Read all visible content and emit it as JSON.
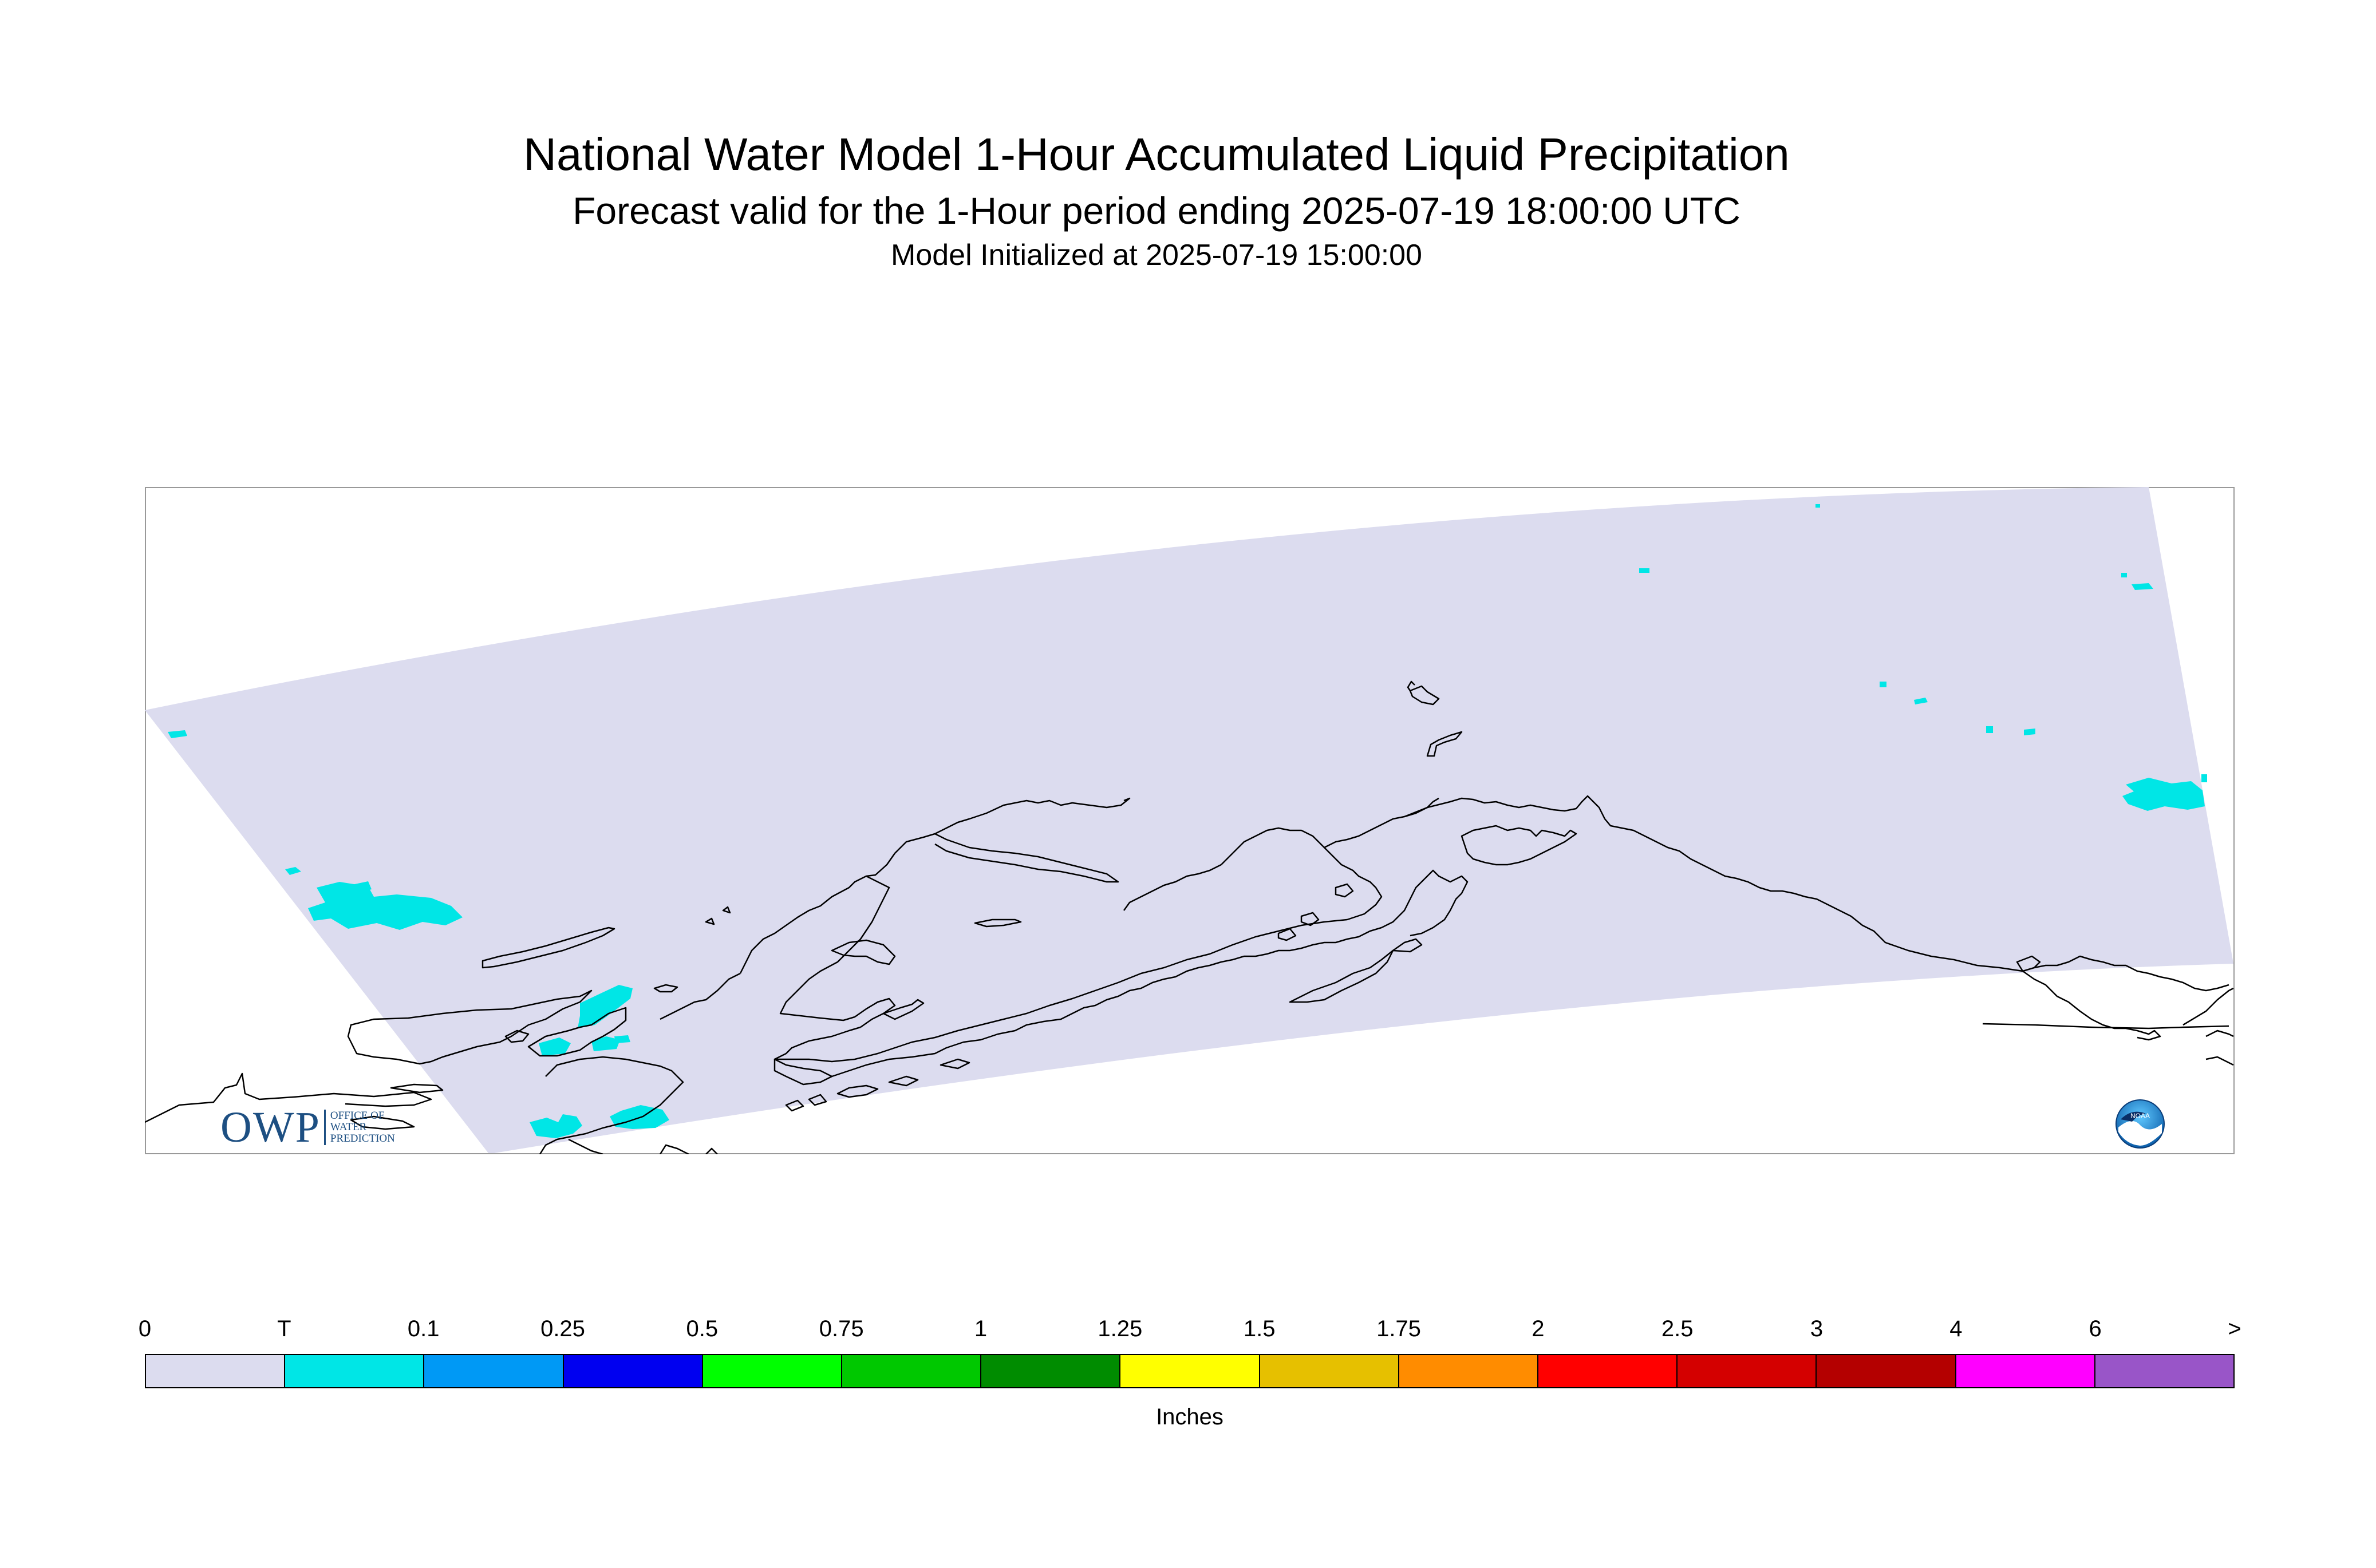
{
  "header": {
    "title": "National Water Model 1-Hour Accumulated Liquid Precipitation",
    "subtitle": "Forecast valid for the 1-Hour period ending 2025-07-19 18:00:00 UTC",
    "init_line": "Model Initialized at 2025-07-19 15:00:00"
  },
  "map": {
    "domain_fill": "#dcdcef",
    "trace_precip_color": "#00e6e6",
    "coast_color": "#000000",
    "frame_color": "#999999"
  },
  "logos": {
    "owp_letters": "OWP",
    "owp_sub": [
      "OFFICE OF",
      "WATER",
      "PREDICTION"
    ],
    "noaa_text": "NOAA"
  },
  "legend": {
    "labels": [
      "0",
      "T",
      "0.1",
      "0.25",
      "0.5",
      "0.75",
      "1",
      "1.25",
      "1.5",
      "1.75",
      "2",
      "2.5",
      "3",
      "4",
      "6",
      ">"
    ],
    "colors": [
      "#dcdcef",
      "#00e6e6",
      "#0099f5",
      "#0000f0",
      "#00ff00",
      "#00c800",
      "#008c00",
      "#ffff00",
      "#e6c000",
      "#ff8c00",
      "#ff0000",
      "#d40000",
      "#b40000",
      "#ff00ff",
      "#9955c8"
    ],
    "units": "Inches"
  }
}
